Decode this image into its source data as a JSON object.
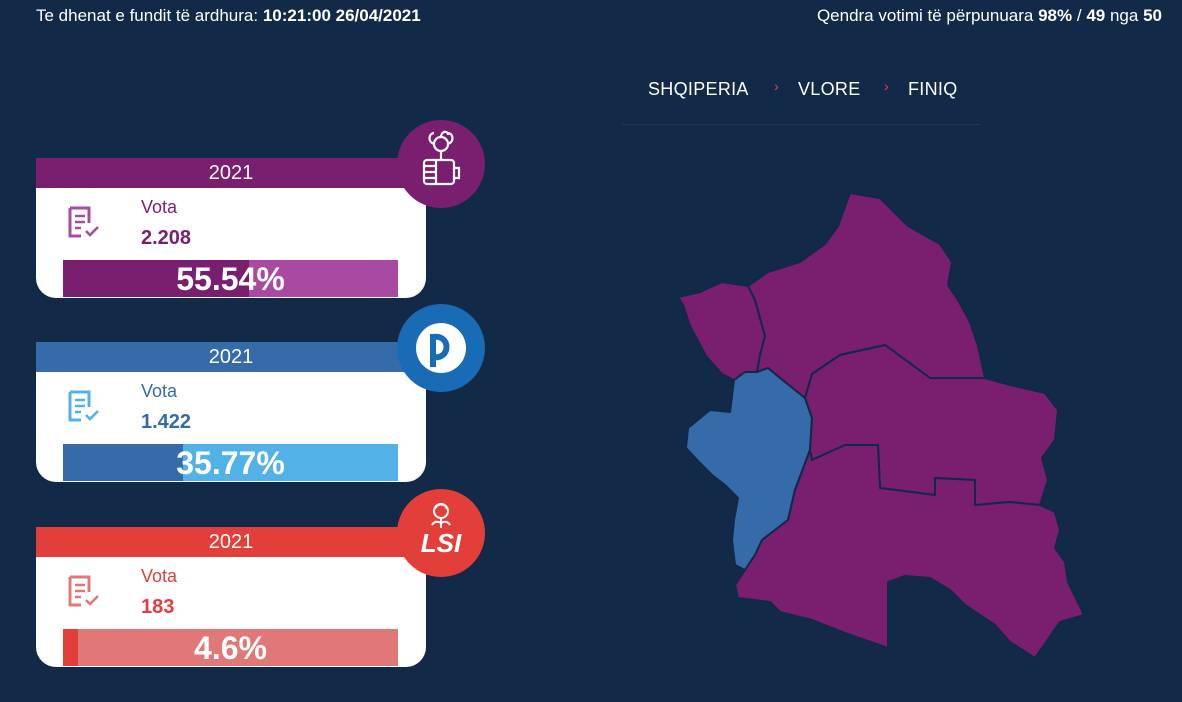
{
  "header": {
    "updated_label": "Te dhenat e fundit të ardhura:",
    "updated_value": "10:21:00 26/04/2021",
    "centers_label": "Qendra votimi të përpunuara",
    "centers_percent": "98%",
    "centers_sep": "/",
    "centers_count": "49",
    "centers_of": "nga",
    "centers_total": "50"
  },
  "breadcrumb": {
    "items": [
      "SHQIPERIA",
      "VLORE",
      "FINIQ"
    ],
    "separator": "›"
  },
  "parties": [
    {
      "year": "2021",
      "votes_label": "Vota",
      "votes": "2.208",
      "percent_label": "55.54%",
      "percent": 55.54,
      "color": "#7a1e6f",
      "light_color": "#a84aa2",
      "logo": "rose-fist-icon"
    },
    {
      "year": "2021",
      "votes_label": "Vota",
      "votes": "1.422",
      "percent_label": "35.77%",
      "percent": 35.77,
      "color": "#356ba8",
      "light_color": "#52b1e7",
      "logo": "pd-icon"
    },
    {
      "year": "2021",
      "votes_label": "Vota",
      "votes": "183",
      "percent_label": "4.6%",
      "percent": 4.6,
      "color": "#e23e3a",
      "light_color": "#e07878",
      "logo": "lsi-rose-icon",
      "logo_text": "LSI"
    }
  ],
  "map": {
    "region_colors": {
      "ps": "#7a1e6f",
      "pd": "#356ba8"
    },
    "border_color": "#12284a"
  }
}
